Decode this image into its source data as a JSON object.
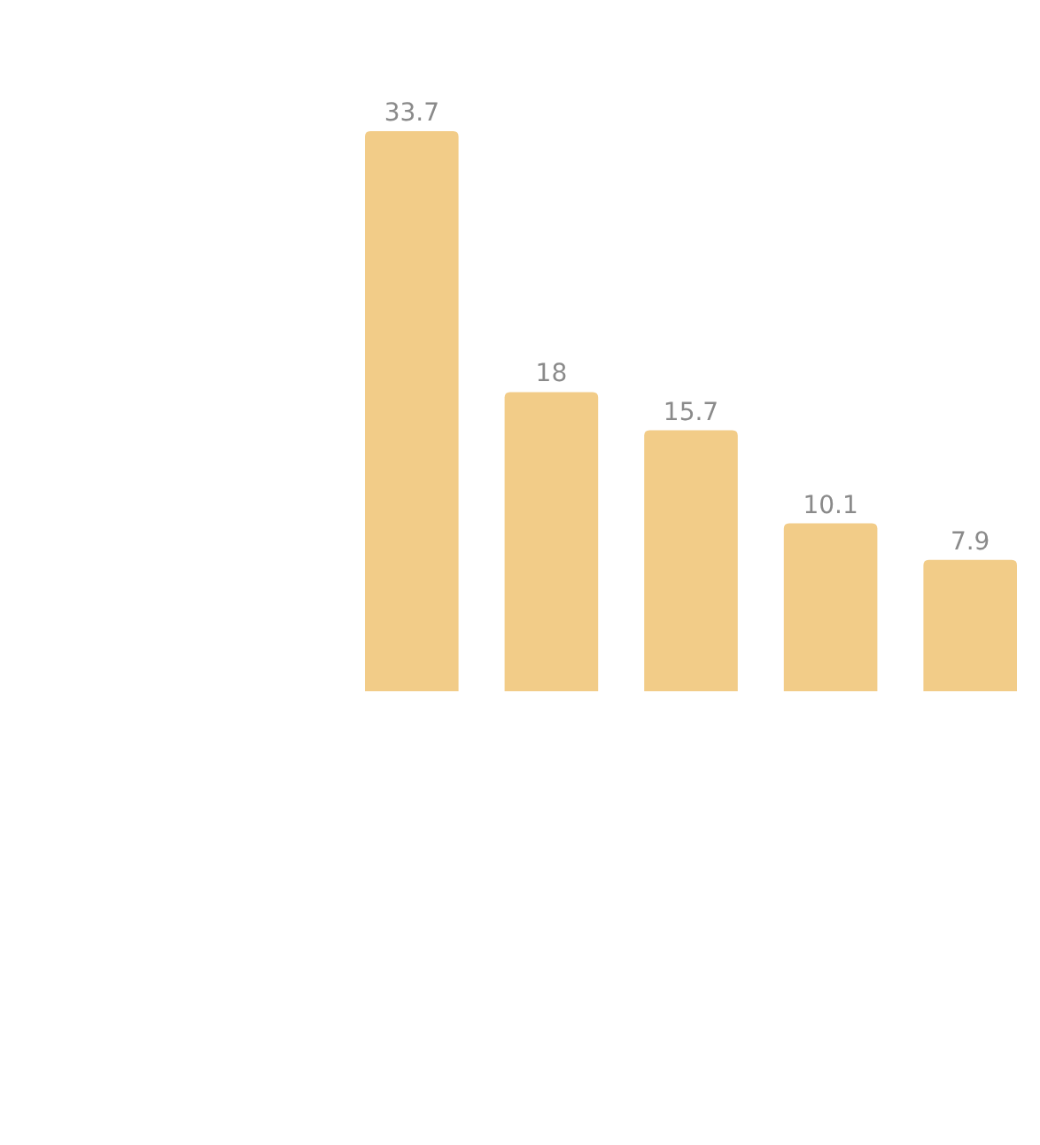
{
  "chart_data": {
    "type": "bar",
    "categories": [
      null,
      null,
      null,
      null,
      null
    ],
    "values": [
      33.7,
      18,
      15.7,
      10.1,
      7.9
    ],
    "color": "#f2cc88",
    "data_labels": true
  }
}
